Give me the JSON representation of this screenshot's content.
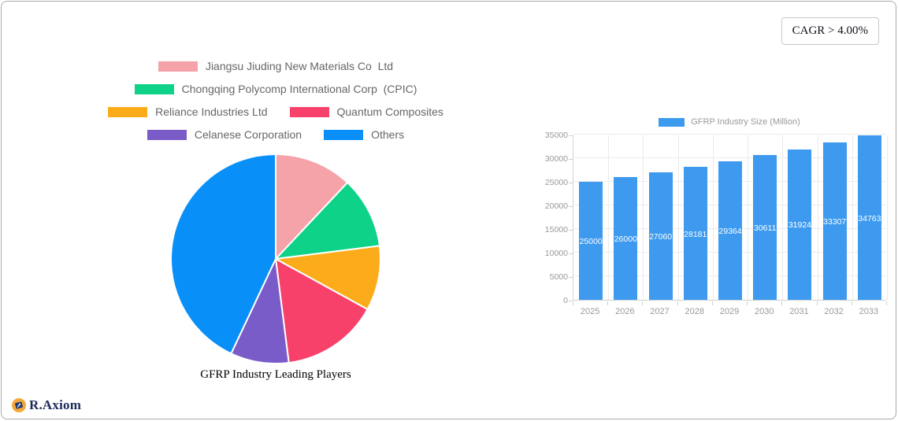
{
  "cagr_badge": {
    "label": "CAGR > 4.00%"
  },
  "logo": {
    "text": "R.Axiom"
  },
  "colors": {
    "legend_text": "#666666",
    "axis_text": "#999999",
    "grid": "#EBEBEB",
    "pie_stroke": "#FFFFFF"
  },
  "chart_data": [
    {
      "type": "pie",
      "title": "GFRP Industry Leading Players",
      "labels": [
        "Jiangsu Jiuding New Materials Co  Ltd",
        "Chongqing Polycomp International Corp  (CPIC)",
        "Reliance Industries Ltd",
        "Quantum Composites",
        "Celanese Corporation",
        "Others"
      ],
      "values": [
        12,
        11,
        10,
        15,
        9,
        43
      ],
      "colors": [
        "#F5A2A8",
        "#0FD289",
        "#FCAC1B",
        "#F7416B",
        "#7A5CC8",
        "#0890F8"
      ],
      "legend_position": "top",
      "start_angle_deg": 0,
      "direction": "clockwise"
    },
    {
      "type": "bar",
      "legend_label": "GFRP Industry Size (Million)",
      "categories": [
        "2025",
        "2026",
        "2027",
        "2028",
        "2029",
        "2030",
        "2031",
        "2032",
        "2033"
      ],
      "values": [
        25000,
        26000,
        27060,
        28181,
        29364,
        30611,
        31924,
        33307,
        34763
      ],
      "ylim": [
        0,
        35000
      ],
      "yticks": [
        0,
        5000,
        10000,
        15000,
        20000,
        25000,
        30000,
        35000
      ],
      "bar_color": "#3D9AEE",
      "value_label_color": "#FFFFFF",
      "grid": true,
      "legend_position": "top"
    }
  ]
}
